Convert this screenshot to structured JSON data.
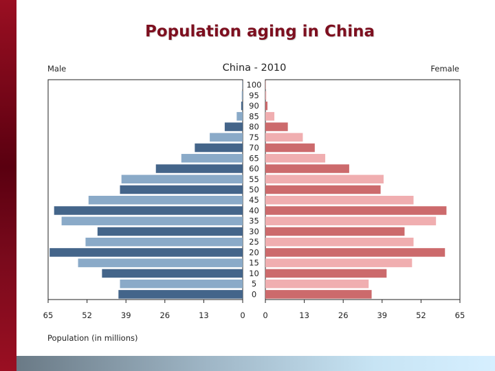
{
  "slide": {
    "title": "Population aging in China"
  },
  "chart_data": {
    "type": "bar",
    "title": "China - 2010",
    "left_label": "Male",
    "right_label": "Female",
    "xlabel": "Population (in millions)",
    "xlim": [
      0,
      65
    ],
    "x_ticks": [
      "65",
      "52",
      "39",
      "26",
      "13",
      "0",
      "0",
      "13",
      "26",
      "39",
      "52",
      "65"
    ],
    "categories": [
      "100",
      "95",
      "90",
      "85",
      "80",
      "75",
      "70",
      "65",
      "60",
      "55",
      "50",
      "45",
      "40",
      "35",
      "30",
      "25",
      "20",
      "15",
      "10",
      "5",
      "0"
    ],
    "series": [
      {
        "name": "Male",
        "values": [
          0.1,
          0.3,
          0.5,
          2,
          6,
          11,
          16,
          20.5,
          29,
          40.5,
          41,
          51.5,
          63,
          60.5,
          48.5,
          52.5,
          64.5,
          55,
          47,
          41,
          41.5
        ]
      },
      {
        "name": "Female",
        "values": [
          0.1,
          0.3,
          0.7,
          3,
          7.5,
          12.5,
          16.5,
          20,
          28,
          39.5,
          38.5,
          49.5,
          60.5,
          57,
          46.5,
          49.5,
          60,
          49,
          40.5,
          34.5,
          35.5
        ]
      }
    ],
    "colors": {
      "male_dark": "#44658a",
      "male_light": "#8aaac8",
      "female_dark": "#cc6a6c",
      "female_light": "#f0aeb0"
    }
  }
}
